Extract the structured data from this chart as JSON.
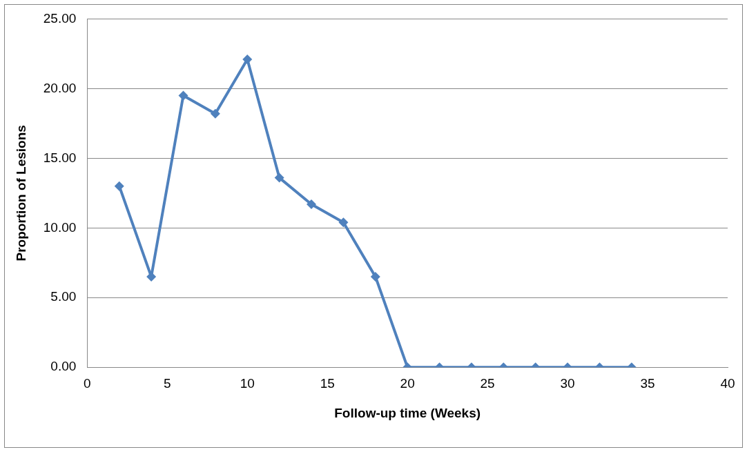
{
  "chart_data": {
    "type": "line",
    "xlabel": "Follow-up time (Weeks)",
    "ylabel": "Proportion of Lesions",
    "x": [
      2,
      4,
      6,
      8,
      10,
      12,
      14,
      16,
      18,
      20,
      22,
      24,
      26,
      28,
      30,
      32,
      34
    ],
    "series": [
      {
        "color": "#4f81bd",
        "values": [
          13.0,
          6.5,
          19.5,
          18.2,
          22.1,
          13.6,
          11.7,
          10.4,
          6.5,
          0,
          0,
          0,
          0,
          0,
          0,
          0,
          0
        ]
      }
    ],
    "xlim": [
      0,
      40
    ],
    "xticks": [
      0,
      5,
      10,
      15,
      20,
      25,
      30,
      35,
      40
    ],
    "ylim": [
      0,
      25
    ],
    "yticks": [
      {
        "value": 0,
        "label": "0.00"
      },
      {
        "value": 5,
        "label": "5.00"
      },
      {
        "value": 10,
        "label": "10.00"
      },
      {
        "value": 15,
        "label": "15.00"
      },
      {
        "value": 20,
        "label": "20.00"
      },
      {
        "value": 25,
        "label": "25.00"
      }
    ],
    "grid": "y",
    "legend": false,
    "marker": "diamond",
    "line_style": "solid"
  }
}
